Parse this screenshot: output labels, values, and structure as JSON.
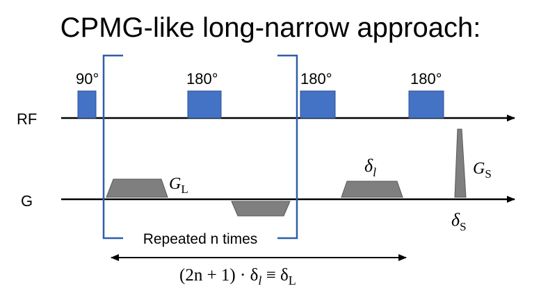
{
  "title": "CPMG-like long-narrow approach:",
  "rf_label": "RF",
  "g_label": "G",
  "pulses": {
    "p90": "90°",
    "p180_a": "180°",
    "p180_b": "180°",
    "p180_c": "180°"
  },
  "gradient_labels": {
    "g_long": "G",
    "g_long_sub": "L",
    "delta_l": "δ",
    "delta_l_sub": "l",
    "g_short": "G",
    "g_short_sub": "S",
    "delta_s": "δ",
    "delta_s_sub": "S"
  },
  "bracket_caption": "Repeated n times",
  "span_formula": {
    "prefix": "(2n + 1) · δ",
    "sub1": "l",
    "mid": " ≡ δ",
    "sub2": "L"
  },
  "colors": {
    "pulse_fill": "#4472C4",
    "gradient_fill": "#7f7f7f",
    "bracket": "#2E5EA8",
    "axis": "#000000"
  }
}
